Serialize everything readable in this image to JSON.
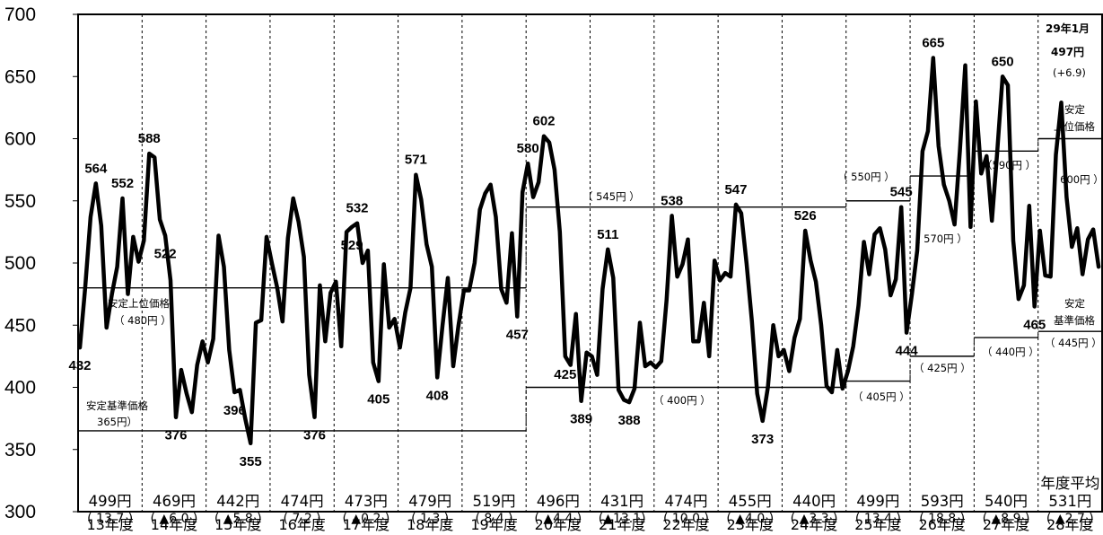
{
  "chart_data": {
    "type": "line",
    "yticks": [
      "700",
      "650",
      "600",
      "550",
      "500",
      "450",
      "400",
      "350",
      "300"
    ],
    "ylim": [
      300,
      700
    ],
    "grid": false,
    "fiscal_years": [
      "13年度",
      "14年度",
      "15年度",
      "16年度",
      "17年度",
      "18年度",
      "19年度",
      "20年度",
      "21年度",
      "22年度",
      "23年度",
      "24年度",
      "25年度",
      "26年度",
      "27年度",
      "28年度"
    ],
    "annual_averages": [
      "499円",
      "469円",
      "442円",
      "474円",
      "473円",
      "479円",
      "519円",
      "496円",
      "431円",
      "474円",
      "455円",
      "440円",
      "499円",
      "593円",
      "540円",
      "531円"
    ],
    "annual_changes": [
      "( 13.7 )",
      "( ▲6.0 )",
      "( ▲5.8 )",
      "( 7.2 )",
      "( ▲0.2 )",
      "( 1.3 )",
      "( 8.4 )",
      "( ▲4.4 )",
      "(▲13.1)",
      "( 10.0 )",
      "( ▲4.0 )",
      "( ▲3.3 )",
      "( 13.4 )",
      "( 18.8 )",
      "( ▲8.9 )",
      "( ▲2.7 )"
    ],
    "annual_average_label": "年度平均",
    "series": [
      {
        "values": [
          432,
          480,
          537,
          564,
          530,
          448,
          475,
          497,
          552,
          475,
          521,
          501,
          518,
          588,
          585,
          535,
          522,
          486,
          376,
          414,
          395,
          380,
          418,
          437,
          420,
          439,
          522,
          497,
          430,
          396,
          398,
          375,
          355,
          452,
          454,
          521,
          500,
          480,
          453,
          520,
          552,
          533,
          505,
          410,
          376,
          482,
          437,
          476,
          485,
          433,
          525,
          529,
          532,
          500,
          510,
          420,
          405,
          499,
          448,
          455,
          432,
          460,
          480,
          571,
          551,
          515,
          497,
          408,
          450,
          488,
          417,
          450,
          478,
          478,
          500,
          543,
          556,
          563,
          537,
          479,
          468,
          524,
          457,
          557,
          580,
          553,
          565,
          602,
          597,
          575,
          525,
          425,
          418,
          459,
          389,
          428,
          425,
          410,
          479,
          511,
          488,
          398,
          390,
          388,
          399,
          452,
          417,
          420,
          416,
          421,
          470,
          538,
          489,
          499,
          519,
          437,
          437,
          468,
          425,
          502,
          486,
          492,
          489,
          547,
          540,
          500,
          453,
          395,
          373,
          400,
          450,
          425,
          430,
          413,
          440,
          455,
          526,
          502,
          485,
          450,
          401,
          396,
          430,
          399,
          413,
          433,
          466,
          517,
          491,
          523,
          528,
          511,
          474,
          487,
          545,
          444,
          475,
          510,
          590,
          606,
          665,
          594,
          563,
          550,
          531,
          590,
          659,
          529,
          630,
          572,
          586,
          534,
          589,
          650,
          643,
          518,
          471,
          482,
          546,
          465,
          526,
          490,
          489,
          587,
          629,
          553,
          513,
          528,
          491,
          519,
          527,
          497
        ]
      }
    ],
    "point_labels": [
      "564",
      "432",
      "588",
      "376",
      "522",
      "355",
      "552",
      "376",
      "532",
      "405",
      "571",
      "408",
      "580",
      "457",
      "602",
      "389",
      "511",
      "388",
      "538",
      "425",
      "547",
      "373",
      "526",
      "396",
      "545",
      "444",
      "665",
      "529",
      "650",
      "465"
    ],
    "stable_upper_price": {
      "label": "安定上位価格",
      "segments": [
        {
          "from": "13年度",
          "to": "19年度",
          "value": 480
        },
        {
          "from": "20年度",
          "to": "24年度",
          "value": 545
        },
        {
          "from": "25年度",
          "to": "25年度",
          "value": 550
        },
        {
          "from": "26年度",
          "to": "26年度",
          "value": 570
        },
        {
          "from": "27年度",
          "to": "27年度",
          "value": 590
        },
        {
          "from": "28年度",
          "to": "28年度",
          "value": 600
        }
      ],
      "value_labels": [
        "（ 480円 ）",
        "（ 545円 ）",
        "（ 550円 ）",
        "（ 570円 ）",
        "（590円 ）",
        "（ 600円 ）"
      ]
    },
    "stable_base_price": {
      "label": "安定基準価格",
      "segments": [
        {
          "from": "13年度",
          "to": "19年度",
          "value": 365
        },
        {
          "from": "20年度",
          "to": "24年度",
          "value": 400
        },
        {
          "from": "25年度",
          "to": "25年度",
          "value": 405
        },
        {
          "from": "26年度",
          "to": "26年度",
          "value": 425
        },
        {
          "from": "27年度",
          "to": "27年度",
          "value": 440
        },
        {
          "from": "28年度",
          "to": "28年度",
          "value": 445
        }
      ],
      "value_labels": [
        "365円）",
        "（ 400円 ）",
        "（ 405円 ）",
        "（ 425円 ）",
        "（ 440円 ）",
        "（ 445円 ）"
      ]
    },
    "annotation_latest": {
      "month": "29年1月",
      "value": "497円",
      "change": "(+6.9)"
    },
    "annotations": {
      "upper_label_left": "安定上位価格",
      "base_label_left": "安定基準価格",
      "upper_label_right_1": "安定",
      "upper_label_right_2": "上位価格",
      "base_label_right_1": "安定",
      "base_label_right_2": "基準価格"
    }
  },
  "colors": {
    "line": "#000000",
    "background": "#ffffff"
  }
}
